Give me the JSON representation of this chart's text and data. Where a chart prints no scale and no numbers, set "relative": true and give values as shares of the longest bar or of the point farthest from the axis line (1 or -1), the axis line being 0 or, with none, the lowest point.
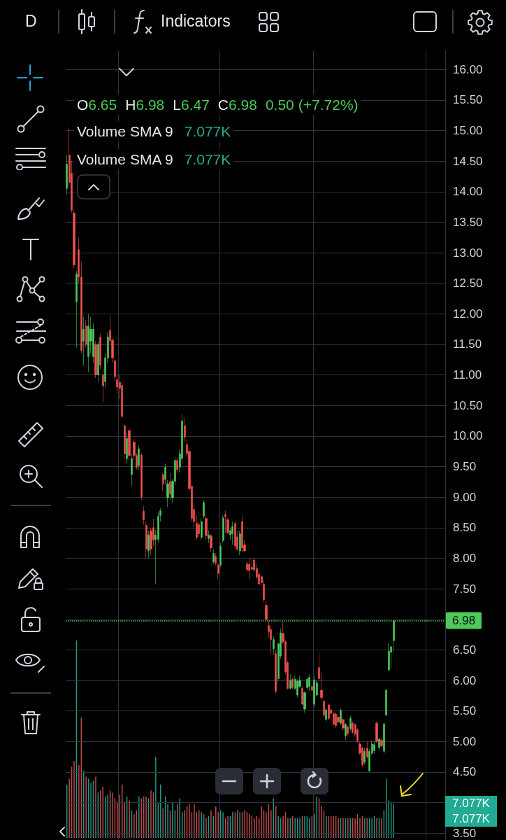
{
  "chart_data": [
    {
      "type": "candlestick",
      "categories": [
        null,
        null,
        null,
        null,
        null,
        null,
        null,
        null,
        null,
        null,
        null,
        null,
        null,
        null,
        null,
        null,
        null,
        null,
        null,
        null,
        null,
        null,
        null,
        null,
        null,
        null,
        null,
        null,
        null,
        null,
        null,
        null,
        null,
        null,
        null,
        null,
        null,
        null,
        null,
        null,
        null,
        null,
        null,
        null,
        null,
        null,
        null,
        null,
        null,
        null,
        null,
        null,
        null,
        null,
        null,
        null,
        null,
        null,
        null,
        null,
        null,
        null,
        null,
        null,
        null,
        null,
        null,
        null,
        null,
        null,
        null,
        null,
        null,
        null,
        null,
        null,
        null,
        null,
        null,
        null,
        null,
        null,
        null,
        null,
        null,
        null,
        null,
        null,
        null,
        null,
        null,
        null,
        null,
        null,
        null,
        null,
        null,
        null,
        null,
        null,
        null,
        null,
        null,
        null,
        null,
        null,
        null,
        null,
        null,
        null,
        null,
        null,
        null,
        null,
        null,
        null,
        null,
        null,
        null,
        null,
        null,
        null,
        null,
        null,
        null,
        null,
        null,
        null,
        null,
        null,
        null,
        null,
        null,
        null,
        null,
        null,
        null,
        null,
        null,
        null,
        null,
        null,
        null,
        null,
        null,
        null,
        null,
        null,
        null,
        null,
        null,
        null,
        null,
        null,
        null,
        null,
        null,
        null
      ],
      "ohlc": [
        [
          14.05,
          14.6,
          13.95,
          14.45
        ],
        [
          14.6,
          15.05,
          14.1,
          14.15
        ],
        [
          14.3,
          14.5,
          13.65,
          13.7
        ],
        [
          13.65,
          13.7,
          12.75,
          12.8
        ],
        [
          12.2,
          12.7,
          11.45,
          12.65
        ],
        [
          13.05,
          13.25,
          12.5,
          12.6
        ],
        [
          12.6,
          12.85,
          11.35,
          11.4
        ],
        [
          11.55,
          11.95,
          11.15,
          11.75
        ],
        [
          11.8,
          11.9,
          11.45,
          11.5
        ],
        [
          11.3,
          12.0,
          11.05,
          11.8
        ],
        [
          11.55,
          11.95,
          11.35,
          11.75
        ],
        [
          11.3,
          11.85,
          11.2,
          11.75
        ],
        [
          11.5,
          11.55,
          10.95,
          11.0
        ],
        [
          11.0,
          11.55,
          10.88,
          11.5
        ],
        [
          11.62,
          11.68,
          11.1,
          11.16
        ],
        [
          11.0,
          11.1,
          10.55,
          10.82
        ],
        [
          10.89,
          11.35,
          10.78,
          11.28
        ],
        [
          11.28,
          11.7,
          11.2,
          11.62
        ],
        [
          11.73,
          11.97,
          11.5,
          11.56
        ],
        [
          11.57,
          11.6,
          11.2,
          11.28
        ],
        [
          11.23,
          11.28,
          10.9,
          10.97
        ],
        [
          10.92,
          11.0,
          10.7,
          10.8
        ],
        [
          10.88,
          11.0,
          10.6,
          10.78
        ],
        [
          10.83,
          10.85,
          10.3,
          10.32
        ],
        [
          10.17,
          10.2,
          9.62,
          9.71
        ],
        [
          9.63,
          10.05,
          9.55,
          9.96
        ],
        [
          10.09,
          10.12,
          9.6,
          9.68
        ],
        [
          9.37,
          9.7,
          9.18,
          9.63
        ],
        [
          9.9,
          9.95,
          9.6,
          9.68
        ],
        [
          9.68,
          9.72,
          9.45,
          9.49
        ],
        [
          9.52,
          9.85,
          9.45,
          9.79
        ],
        [
          9.69,
          9.72,
          8.95,
          9.0
        ],
        [
          8.77,
          8.85,
          8.55,
          8.63
        ],
        [
          8.54,
          8.6,
          8.0,
          8.15
        ],
        [
          8.12,
          8.45,
          8.0,
          8.38
        ],
        [
          8.45,
          8.5,
          8.05,
          8.15
        ],
        [
          8.5,
          8.65,
          8.2,
          8.3
        ],
        [
          8.3,
          8.46,
          7.58,
          8.38
        ],
        [
          8.31,
          8.75,
          8.25,
          8.69
        ],
        [
          8.7,
          8.82,
          8.6,
          8.78
        ],
        [
          9.37,
          9.4,
          9.1,
          9.22
        ],
        [
          9.29,
          9.55,
          9.2,
          9.49
        ],
        [
          8.99,
          9.28,
          8.84,
          9.22
        ],
        [
          9.25,
          9.4,
          8.95,
          9.05
        ],
        [
          8.99,
          9.3,
          8.9,
          9.26
        ],
        [
          9.26,
          9.65,
          9.2,
          9.6
        ],
        [
          9.6,
          9.65,
          9.4,
          9.45
        ],
        [
          9.49,
          9.78,
          9.4,
          9.71
        ],
        [
          9.63,
          10.36,
          9.55,
          10.25
        ],
        [
          10.17,
          10.3,
          9.9,
          9.98
        ],
        [
          9.86,
          9.95,
          9.65,
          9.71
        ],
        [
          9.75,
          9.8,
          9.1,
          9.14
        ],
        [
          9.18,
          9.2,
          8.6,
          8.65
        ],
        [
          8.8,
          8.9,
          8.5,
          8.6
        ],
        [
          8.57,
          8.7,
          8.31,
          8.34
        ],
        [
          8.55,
          8.6,
          8.35,
          8.4
        ],
        [
          8.34,
          8.65,
          8.3,
          8.6
        ],
        [
          8.69,
          8.95,
          8.65,
          8.91
        ],
        [
          8.65,
          8.7,
          8.3,
          8.37
        ],
        [
          8.32,
          8.45,
          8.25,
          8.38
        ],
        [
          8.37,
          8.4,
          8.1,
          8.17
        ],
        [
          7.94,
          8.15,
          7.9,
          8.08
        ],
        [
          8.03,
          8.08,
          7.88,
          7.92
        ],
        [
          7.89,
          7.92,
          7.66,
          7.75
        ],
        [
          7.89,
          8.25,
          7.85,
          8.2
        ],
        [
          8.29,
          8.7,
          8.25,
          8.66
        ],
        [
          8.72,
          8.78,
          8.42,
          8.68
        ],
        [
          8.63,
          8.66,
          8.4,
          8.42
        ],
        [
          8.38,
          8.5,
          8.3,
          8.45
        ],
        [
          8.4,
          8.6,
          8.22,
          8.52
        ],
        [
          8.57,
          8.6,
          8.15,
          8.2
        ],
        [
          8.35,
          8.45,
          8.12,
          8.15
        ],
        [
          8.12,
          8.45,
          8.05,
          8.4
        ],
        [
          8.6,
          8.7,
          8.1,
          8.17
        ],
        [
          8.22,
          8.3,
          8.1,
          8.12
        ],
        [
          7.91,
          7.95,
          7.78,
          7.81
        ],
        [
          7.9,
          8.0,
          7.66,
          7.8
        ],
        [
          7.85,
          8.0,
          7.8,
          7.82
        ],
        [
          7.97,
          8.02,
          7.78,
          7.81
        ],
        [
          7.83,
          7.9,
          7.65,
          7.69
        ],
        [
          7.74,
          7.78,
          7.55,
          7.58
        ],
        [
          7.7,
          7.75,
          7.55,
          7.6
        ],
        [
          7.58,
          7.65,
          7.28,
          7.32
        ],
        [
          7.23,
          7.3,
          6.98,
          7.0
        ],
        [
          6.9,
          6.98,
          6.7,
          6.8
        ],
        [
          6.83,
          6.88,
          6.44,
          6.67
        ],
        [
          6.52,
          6.72,
          6.42,
          6.67
        ],
        [
          6.44,
          6.5,
          5.78,
          5.82
        ],
        [
          6.03,
          6.62,
          5.98,
          6.6
        ],
        [
          6.4,
          6.85,
          6.35,
          6.78
        ],
        [
          6.77,
          6.98,
          6.6,
          6.63
        ],
        [
          6.63,
          6.66,
          6.1,
          6.14
        ],
        [
          6.29,
          6.32,
          5.85,
          5.87
        ],
        [
          5.87,
          6.1,
          5.85,
          6.0
        ],
        [
          6.02,
          6.05,
          5.86,
          5.88
        ],
        [
          5.87,
          6.07,
          5.85,
          6.02
        ],
        [
          5.76,
          6.02,
          5.72,
          5.99
        ],
        [
          5.9,
          6.08,
          5.88,
          6.0
        ],
        [
          5.87,
          5.9,
          5.6,
          5.61
        ],
        [
          5.53,
          5.82,
          5.47,
          5.8
        ],
        [
          5.88,
          6.05,
          5.85,
          6.02
        ],
        [
          5.9,
          6.1,
          5.82,
          6.05
        ],
        [
          5.9,
          5.92,
          5.82,
          5.84
        ],
        [
          5.61,
          6.08,
          5.56,
          6.01
        ],
        [
          5.76,
          6.0,
          5.74,
          5.96
        ],
        [
          6.21,
          6.46,
          6.0,
          6.03
        ],
        [
          5.84,
          6.12,
          5.68,
          5.72
        ],
        [
          5.66,
          5.68,
          5.4,
          5.43
        ],
        [
          5.36,
          5.55,
          5.33,
          5.52
        ],
        [
          5.6,
          5.62,
          5.35,
          5.38
        ],
        [
          5.52,
          5.56,
          5.44,
          5.46
        ],
        [
          5.46,
          5.5,
          5.26,
          5.28
        ],
        [
          5.45,
          5.48,
          5.22,
          5.26
        ],
        [
          5.4,
          5.45,
          5.28,
          5.32
        ],
        [
          5.3,
          5.55,
          5.27,
          5.51
        ],
        [
          5.36,
          5.4,
          5.18,
          5.22
        ],
        [
          5.09,
          5.3,
          5.02,
          5.28
        ],
        [
          5.24,
          5.27,
          5.1,
          5.13
        ],
        [
          5.21,
          5.42,
          5.18,
          5.38
        ],
        [
          5.3,
          5.33,
          5.12,
          5.15
        ],
        [
          5.28,
          5.3,
          5.08,
          5.12
        ],
        [
          5.19,
          5.22,
          4.98,
          5.01
        ],
        [
          4.96,
          5.0,
          4.78,
          4.81
        ],
        [
          4.89,
          4.92,
          4.58,
          4.62
        ],
        [
          4.66,
          4.9,
          4.62,
          4.84
        ],
        [
          4.89,
          5.0,
          4.72,
          4.75
        ],
        [
          4.52,
          4.88,
          4.5,
          4.84
        ],
        [
          4.81,
          5.02,
          4.78,
          4.96
        ],
        [
          4.85,
          5.0,
          4.8,
          4.95
        ],
        [
          5.3,
          5.33,
          4.98,
          5.0
        ],
        [
          4.9,
          5.06,
          4.86,
          5.04
        ],
        [
          5.02,
          5.06,
          4.9,
          4.93
        ],
        [
          4.84,
          5.3,
          4.8,
          5.29
        ],
        [
          5.43,
          5.86,
          5.42,
          5.84
        ],
        [
          6.17,
          6.61,
          6.17,
          6.48
        ],
        [
          6.46,
          6.58,
          6.2,
          6.55
        ],
        [
          6.65,
          6.98,
          6.47,
          6.98
        ],
        null,
        null,
        null,
        null,
        null,
        null,
        null,
        null,
        null,
        null,
        null,
        null,
        null,
        null,
        null,
        null,
        null,
        null,
        null,
        null,
        null
      ],
      "colors": [
        "#4cc95a",
        "#f0504f",
        "#f0504f",
        "#f0504f",
        "#4cc95a",
        "#f0504f",
        "#f0504f",
        "#4cc95a",
        "#f0504f",
        "#4cc95a",
        "#4cc95a",
        "#4cc95a",
        "#f0504f",
        "#4cc95a",
        "#f0504f",
        "#f0504f",
        "#4cc95a",
        "#4cc95a",
        "#f0504f",
        "#f0504f",
        "#f0504f",
        "#f0504f",
        "#f0504f",
        "#f0504f",
        "#f0504f",
        "#4cc95a",
        "#f0504f",
        "#4cc95a",
        "#f0504f",
        "#f0504f",
        "#4cc95a",
        "#f0504f",
        "#f0504f",
        "#f0504f",
        "#4cc95a",
        "#f0504f",
        "#f0504f",
        "#4cc95a",
        "#4cc95a",
        "#4cc95a",
        "#f0504f",
        "#4cc95a",
        "#4cc95a",
        "#f0504f",
        "#4cc95a",
        "#4cc95a",
        "#f0504f",
        "#4cc95a",
        "#4cc95a",
        "#f0504f",
        "#f0504f",
        "#f0504f",
        "#f0504f",
        "#f0504f",
        "#f0504f",
        "#f0504f",
        "#4cc95a",
        "#4cc95a",
        "#f0504f",
        "#4cc95a",
        "#f0504f",
        "#4cc95a",
        "#f0504f",
        "#f0504f",
        "#4cc95a",
        "#4cc95a",
        "#f0504f",
        "#f0504f",
        "#4cc95a",
        "#4cc95a",
        "#f0504f",
        "#f0504f",
        "#4cc95a",
        "#f0504f",
        "#f0504f",
        "#f0504f",
        "#f0504f",
        "#f0504f",
        "#f0504f",
        "#f0504f",
        "#f0504f",
        "#f0504f",
        "#f0504f",
        "#f0504f",
        "#f0504f",
        "#f0504f",
        "#4cc95a",
        "#f0504f",
        "#4cc95a",
        "#4cc95a",
        "#f0504f",
        "#f0504f",
        "#f0504f",
        "#4cc95a",
        "#f0504f",
        "#4cc95a",
        "#4cc95a",
        "#4cc95a",
        "#f0504f",
        "#4cc95a",
        "#4cc95a",
        "#4cc95a",
        "#f0504f",
        "#4cc95a",
        "#4cc95a",
        "#f0504f",
        "#f0504f",
        "#f0504f",
        "#4cc95a",
        "#f0504f",
        "#f0504f",
        "#f0504f",
        "#f0504f",
        "#f0504f",
        "#4cc95a",
        "#f0504f",
        "#4cc95a",
        "#f0504f",
        "#4cc95a",
        "#f0504f",
        "#f0504f",
        "#f0504f",
        "#f0504f",
        "#f0504f",
        "#4cc95a",
        "#f0504f",
        "#4cc95a",
        "#4cc95a",
        "#4cc95a",
        "#f0504f",
        "#4cc95a",
        "#f0504f",
        "#4cc95a",
        "#4cc95a",
        "#4cc95a",
        "#4cc95a",
        "#4cc95a",
        null,
        null,
        null,
        null,
        null,
        null,
        null,
        null,
        null,
        null,
        null,
        null,
        null,
        null,
        null,
        null,
        null,
        null,
        null,
        null,
        null
      ],
      "ylim": [
        3.4,
        16.3
      ],
      "yticks": [
        {
          "value": 3.5,
          "label": "3.50"
        },
        {
          "value": 4,
          "label": null
        },
        {
          "value": 4.5,
          "label": "4.50"
        },
        {
          "value": 5,
          "label": "5.00"
        },
        {
          "value": 5.5,
          "label": "5.50"
        },
        {
          "value": 6,
          "label": "6.00"
        },
        {
          "value": 6.5,
          "label": "6.50"
        },
        {
          "value": 7,
          "label": null
        },
        {
          "value": 7.5,
          "label": "7.50"
        },
        {
          "value": 8,
          "label": "8.00"
        },
        {
          "value": 8.5,
          "label": "8.50"
        },
        {
          "value": 9,
          "label": "9.00"
        },
        {
          "value": 9.5,
          "label": "9.50"
        },
        {
          "value": 10,
          "label": "10.00"
        },
        {
          "value": 10.5,
          "label": "10.50"
        },
        {
          "value": 11,
          "label": "11.00"
        },
        {
          "value": 11.5,
          "label": "11.50"
        },
        {
          "value": 12,
          "label": "12.00"
        },
        {
          "value": 12.5,
          "label": "12.50"
        },
        {
          "value": 13,
          "label": "13.00"
        },
        {
          "value": 13.5,
          "label": "13.50"
        },
        {
          "value": 14,
          "label": "14.00"
        },
        {
          "value": 14.5,
          "label": "14.50"
        },
        {
          "value": 15,
          "label": "15.00"
        },
        {
          "value": 15.5,
          "label": "15.50"
        },
        {
          "value": 16,
          "label": "16.00"
        }
      ],
      "grid": true,
      "tick_labels": "y",
      "ref_lines": [
        {
          "axis": "y",
          "value": 6.98,
          "label": "6.98",
          "color": "#4cc95a",
          "line_style": "dotted"
        }
      ],
      "annotations": [
        "D",
        "Indicators",
        "O6.65 H6.98 L6.47 C6.98 0.50 (+7.72%)"
      ]
    },
    {
      "type": "bar",
      "categories": [
        null,
        null,
        null,
        null,
        null,
        null,
        null,
        null,
        null,
        null,
        null,
        null,
        null,
        null,
        null,
        null,
        null,
        null,
        null,
        null,
        null,
        null,
        null,
        null,
        null,
        null,
        null,
        null,
        null,
        null,
        null,
        null,
        null,
        null,
        null,
        null,
        null,
        null,
        null,
        null,
        null,
        null,
        null,
        null,
        null,
        null,
        null,
        null,
        null,
        null,
        null,
        null,
        null,
        null,
        null,
        null,
        null,
        null,
        null,
        null,
        null,
        null,
        null,
        null,
        null,
        null,
        null,
        null,
        null,
        null,
        null,
        null,
        null,
        null,
        null,
        null,
        null,
        null,
        null,
        null,
        null,
        null,
        null,
        null,
        null,
        null,
        null,
        null,
        null,
        null,
        null,
        null,
        null,
        null,
        null,
        null,
        null,
        null,
        null,
        null,
        null,
        null,
        null,
        null,
        null,
        null,
        null,
        null,
        null,
        null,
        null,
        null,
        null,
        null,
        null,
        null,
        null,
        null,
        null,
        null,
        null,
        null,
        null,
        null,
        null,
        null,
        null,
        null,
        null,
        null,
        null,
        null,
        null,
        null,
        null,
        null,
        null,
        null,
        null,
        null,
        null,
        null,
        null,
        null,
        null,
        null,
        null,
        null,
        null,
        null,
        null,
        null,
        null,
        null,
        null,
        null,
        null,
        null
      ],
      "values": [
        0.27,
        0.3,
        0.36,
        0.39,
        1,
        0.37,
        0.61,
        0.34,
        0.31,
        0.3,
        0.28,
        0.29,
        0.31,
        0.23,
        0.24,
        0.26,
        0.21,
        0.22,
        0.24,
        0.23,
        0.2,
        0.18,
        0.22,
        0.27,
        0.18,
        0.21,
        0.19,
        0.14,
        0.12,
        0.14,
        0.21,
        0.2,
        0.21,
        0.21,
        0.2,
        0.24,
        0.23,
        0.41,
        0.18,
        0.27,
        0.15,
        0.21,
        0.17,
        0.14,
        0.18,
        0.14,
        0.17,
        0.2,
        0.13,
        0.14,
        0.16,
        0.17,
        0.13,
        0.17,
        0.13,
        0.14,
        0.13,
        0.12,
        0.1,
        0.11,
        0.14,
        0.11,
        0.16,
        0.13,
        0.14,
        0.13,
        0.1,
        0.11,
        0.11,
        0.13,
        0.13,
        0.14,
        0.13,
        0.13,
        0.14,
        0.13,
        0.12,
        0.11,
        0.1,
        0.11,
        0.1,
        0.16,
        0.14,
        0.13,
        0.17,
        0.14,
        0.2,
        0.16,
        0.11,
        0.1,
        0.11,
        0.13,
        0.1,
        0.1,
        0.11,
        0.1,
        0.1,
        0.1,
        0.11,
        0.11,
        0.11,
        0.1,
        0.11,
        0.12,
        0.21,
        0.2,
        0.16,
        0.14,
        0.11,
        0.11,
        0.11,
        0.11,
        0.11,
        0.1,
        0.1,
        0.1,
        0.1,
        0.1,
        0.1,
        0.1,
        0.1,
        0.12,
        0.1,
        0.11,
        0.1,
        0.1,
        0.1,
        0.1,
        0.11,
        0.1,
        0.1,
        0.1,
        0.14,
        0.3,
        0.19,
        0.18,
        0.17,
        null,
        null,
        null,
        null,
        null,
        null,
        null,
        null,
        null,
        null,
        null,
        null,
        null,
        null,
        null,
        null,
        null,
        null,
        null,
        null,
        null
      ],
      "colors": [
        "#1f9c8a",
        "#c24d4d",
        "#c24d4d",
        "#c24d4d",
        "#1f9c8a",
        "#c24d4d",
        "#c24d4d",
        "#1f9c8a",
        "#c24d4d",
        "#1f9c8a",
        "#1f9c8a",
        "#1f9c8a",
        "#c24d4d",
        "#1f9c8a",
        "#c24d4d",
        "#c24d4d",
        "#1f9c8a",
        "#1f9c8a",
        "#c24d4d",
        "#c24d4d",
        "#c24d4d",
        "#c24d4d",
        "#c24d4d",
        "#c24d4d",
        "#c24d4d",
        "#1f9c8a",
        "#c24d4d",
        "#1f9c8a",
        "#c24d4d",
        "#c24d4d",
        "#1f9c8a",
        "#c24d4d",
        "#c24d4d",
        "#c24d4d",
        "#1f9c8a",
        "#c24d4d",
        "#c24d4d",
        "#1f9c8a",
        "#1f9c8a",
        "#1f9c8a",
        "#c24d4d",
        "#1f9c8a",
        "#1f9c8a",
        "#c24d4d",
        "#1f9c8a",
        "#1f9c8a",
        "#c24d4d",
        "#1f9c8a",
        "#1f9c8a",
        "#c24d4d",
        "#c24d4d",
        "#c24d4d",
        "#c24d4d",
        "#c24d4d",
        "#c24d4d",
        "#c24d4d",
        "#1f9c8a",
        "#1f9c8a",
        "#c24d4d",
        "#1f9c8a",
        "#c24d4d",
        "#1f9c8a",
        "#c24d4d",
        "#c24d4d",
        "#1f9c8a",
        "#1f9c8a",
        "#c24d4d",
        "#c24d4d",
        "#1f9c8a",
        "#1f9c8a",
        "#c24d4d",
        "#c24d4d",
        "#1f9c8a",
        "#c24d4d",
        "#c24d4d",
        "#c24d4d",
        "#c24d4d",
        "#c24d4d",
        "#c24d4d",
        "#c24d4d",
        "#c24d4d",
        "#c24d4d",
        "#c24d4d",
        "#c24d4d",
        "#c24d4d",
        "#c24d4d",
        "#1f9c8a",
        "#c24d4d",
        "#1f9c8a",
        "#1f9c8a",
        "#c24d4d",
        "#c24d4d",
        "#c24d4d",
        "#1f9c8a",
        "#c24d4d",
        "#1f9c8a",
        "#1f9c8a",
        "#1f9c8a",
        "#c24d4d",
        "#1f9c8a",
        "#1f9c8a",
        "#1f9c8a",
        "#c24d4d",
        "#1f9c8a",
        "#1f9c8a",
        "#c24d4d",
        "#c24d4d",
        "#c24d4d",
        "#1f9c8a",
        "#c24d4d",
        "#c24d4d",
        "#c24d4d",
        "#c24d4d",
        "#c24d4d",
        "#1f9c8a",
        "#c24d4d",
        "#1f9c8a",
        "#c24d4d",
        "#1f9c8a",
        "#c24d4d",
        "#c24d4d",
        "#c24d4d",
        "#c24d4d",
        "#c24d4d",
        "#1f9c8a",
        "#c24d4d",
        "#1f9c8a",
        "#1f9c8a",
        "#1f9c8a",
        "#c24d4d",
        "#1f9c8a",
        "#c24d4d",
        "#1f9c8a",
        "#1f9c8a",
        "#1f9c8a",
        "#1f9c8a",
        "#1f9c8a",
        null,
        null,
        null,
        null,
        null,
        null,
        null,
        null,
        null,
        null,
        null,
        null,
        null,
        null,
        null,
        null,
        null,
        null,
        null,
        null,
        null
      ],
      "relative": true,
      "tick_labels": false,
      "annotations": [
        "Volume SMA 9 7.077K",
        "Volume SMA 9 7.077K",
        "7.077K",
        "7.077K"
      ]
    }
  ]
}
